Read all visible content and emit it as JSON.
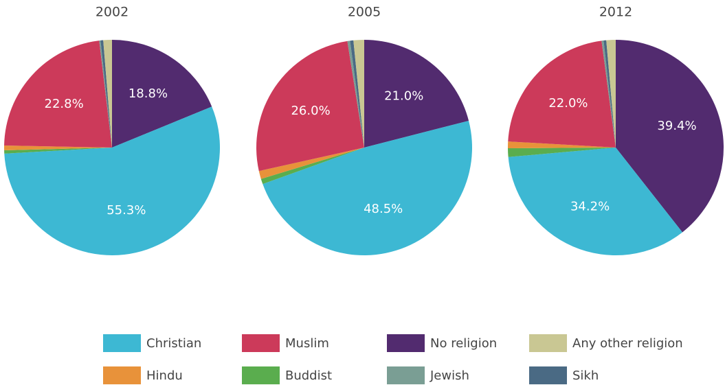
{
  "chart_data": [
    {
      "type": "pie",
      "title": "2002",
      "categories": [
        "No religion",
        "Christian",
        "Buddist",
        "Hindu",
        "Muslim",
        "Jewish",
        "Sikh",
        "Any other religion"
      ],
      "values": [
        18.8,
        55.3,
        0.5,
        0.7,
        22.8,
        0.2,
        0.4,
        1.3
      ],
      "value_labels": [
        "18.8%",
        "55.3%",
        null,
        null,
        "22.8%",
        null,
        null,
        null
      ],
      "colors": [
        "#522b6f",
        "#3db8d3",
        "#5aad4e",
        "#e8923a",
        "#cc3a5a",
        "#7a9e94",
        "#4a6a84",
        "#c9c793"
      ]
    },
    {
      "type": "pie",
      "title": "2005",
      "categories": [
        "No religion",
        "Christian",
        "Buddist",
        "Hindu",
        "Muslim",
        "Jewish",
        "Sikh",
        "Any other religion"
      ],
      "values": [
        21.0,
        48.5,
        0.8,
        1.2,
        26.0,
        0.4,
        0.5,
        1.6
      ],
      "value_labels": [
        "21.0%",
        "48.5%",
        null,
        null,
        "26.0%",
        null,
        null,
        null
      ],
      "colors": [
        "#522b6f",
        "#3db8d3",
        "#5aad4e",
        "#e8923a",
        "#cc3a5a",
        "#7a9e94",
        "#4a6a84",
        "#c9c793"
      ]
    },
    {
      "type": "pie",
      "title": "2012",
      "categories": [
        "No religion",
        "Christian",
        "Buddist",
        "Hindu",
        "Muslim",
        "Jewish",
        "Sikh",
        "Any other religion"
      ],
      "values": [
        39.4,
        34.2,
        1.3,
        1.0,
        22.0,
        0.3,
        0.4,
        1.4
      ],
      "value_labels": [
        "39.4%",
        "34.2%",
        null,
        null,
        "22.0%",
        null,
        null,
        null
      ],
      "colors": [
        "#522b6f",
        "#3db8d3",
        "#5aad4e",
        "#e8923a",
        "#cc3a5a",
        "#7a9e94",
        "#4a6a84",
        "#c9c793"
      ]
    }
  ]
}
